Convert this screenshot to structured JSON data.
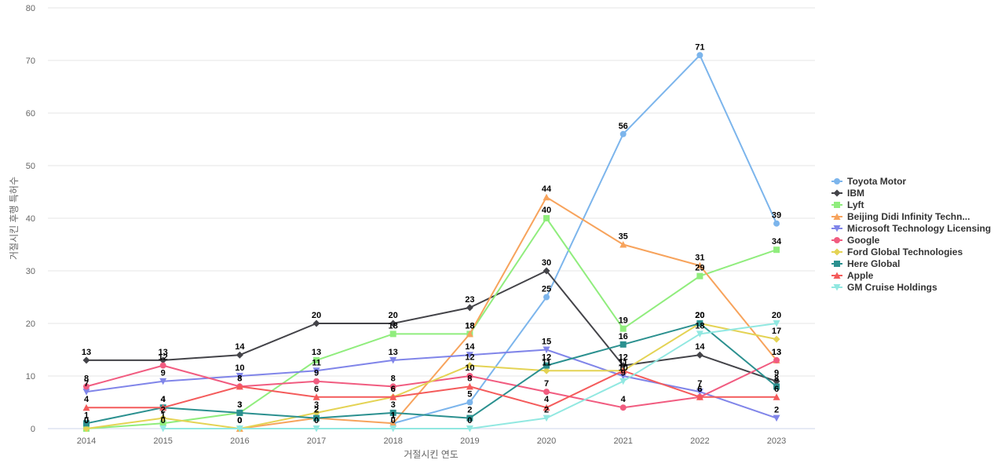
{
  "chart_data": {
    "type": "line",
    "title": "",
    "xlabel": "거절시킨 연도",
    "ylabel": "거절시킨 후행 특허수",
    "x": [
      "2014",
      "2015",
      "2016",
      "2017",
      "2018",
      "2019",
      "2020",
      "2021",
      "2022",
      "2023"
    ],
    "ylim": [
      0,
      80
    ],
    "yticks": [
      0,
      10,
      20,
      30,
      40,
      50,
      60,
      70,
      80
    ],
    "grid": true,
    "legend_position": "right",
    "series": [
      {
        "name": "Toyota Motor",
        "color": "#7cb5ec",
        "marker": "circle",
        "values": [
          null,
          null,
          null,
          null,
          1,
          5,
          25,
          56,
          71,
          39
        ]
      },
      {
        "name": "IBM",
        "color": "#434348",
        "marker": "diamond",
        "values": [
          13,
          13,
          14,
          20,
          20,
          23,
          30,
          12,
          14,
          9
        ]
      },
      {
        "name": "Lyft",
        "color": "#90ed7d",
        "marker": "square",
        "values": [
          0,
          1,
          3,
          13,
          18,
          18,
          40,
          19,
          29,
          34
        ]
      },
      {
        "name": "Beijing Didi Infinity Techn...",
        "color": "#f7a35c",
        "marker": "triangle",
        "values": [
          null,
          null,
          0,
          2,
          1,
          18,
          44,
          35,
          31,
          13
        ]
      },
      {
        "name": "Microsoft Technology Licensing",
        "color": "#8085e9",
        "marker": "triangle-down",
        "values": [
          7,
          9,
          10,
          11,
          13,
          14,
          15,
          10,
          7,
          2
        ]
      },
      {
        "name": "Google",
        "color": "#f15c80",
        "marker": "circle",
        "values": [
          8,
          12,
          8,
          9,
          8,
          10,
          7,
          4,
          6,
          13
        ]
      },
      {
        "name": "Ford Global Technologies",
        "color": "#e4d354",
        "marker": "diamond",
        "values": [
          0,
          2,
          0,
          3,
          6,
          12,
          11,
          11,
          20,
          17
        ]
      },
      {
        "name": "Here Global",
        "color": "#2b908f",
        "marker": "square",
        "values": [
          1,
          4,
          3,
          2,
          3,
          2,
          12,
          16,
          20,
          8
        ]
      },
      {
        "name": "Apple",
        "color": "#f45b5b",
        "marker": "triangle",
        "values": [
          4,
          4,
          8,
          6,
          6,
          8,
          4,
          11,
          6,
          6
        ]
      },
      {
        "name": "GM Cruise Holdings",
        "color": "#91e8e1",
        "marker": "triangle-down",
        "values": [
          null,
          0,
          0,
          0,
          0,
          0,
          2,
          9,
          18,
          20
        ]
      }
    ]
  }
}
